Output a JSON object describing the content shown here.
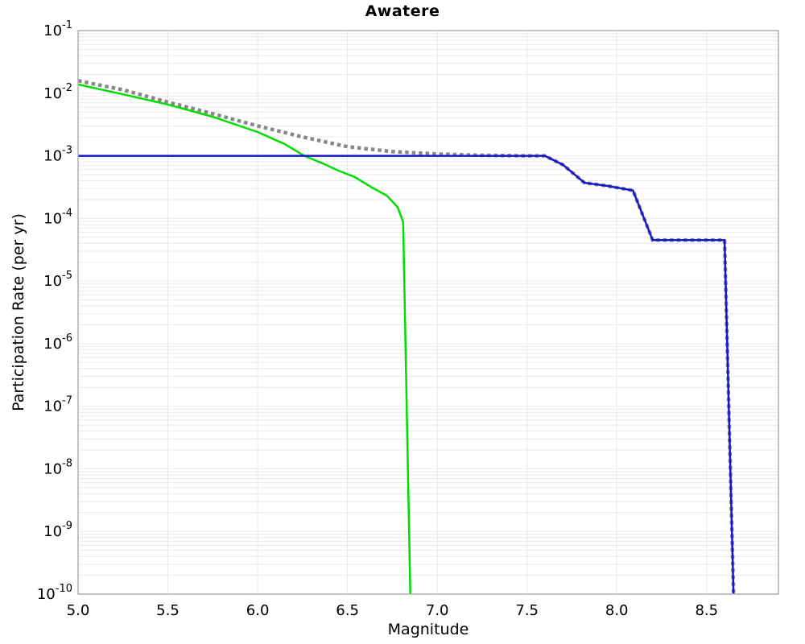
{
  "chart_data": {
    "type": "line",
    "title": "Awatere",
    "xlabel": "Magnitude",
    "ylabel": "Participation Rate (per yr)",
    "x_range": [
      5.0,
      8.9
    ],
    "y_exp_top": -1,
    "y_exp_bottom": -10,
    "x_ticks": [
      {
        "value": 5.0,
        "label": "5.0"
      },
      {
        "value": 5.5,
        "label": "5.5"
      },
      {
        "value": 6.0,
        "label": "6.0"
      },
      {
        "value": 6.5,
        "label": "6.5"
      },
      {
        "value": 7.0,
        "label": "7.0"
      },
      {
        "value": 7.5,
        "label": "7.5"
      },
      {
        "value": 8.0,
        "label": "8.0"
      },
      {
        "value": 8.5,
        "label": "8.5"
      }
    ],
    "y_tick_exponents": [
      -1,
      -2,
      -3,
      -4,
      -5,
      -6,
      -7,
      -8,
      -9,
      -10
    ],
    "grid": "on",
    "legend": "none",
    "grid_color": "#e9e9e9",
    "border_color": "#adadad",
    "series": [
      {
        "id": "dotted-gray",
        "style": "dotted",
        "color": "#878787",
        "width": 4.5,
        "points": [
          [
            5.0,
            0.0158
          ],
          [
            5.25,
            0.0113
          ],
          [
            5.5,
            0.0072
          ],
          [
            5.75,
            0.0047
          ],
          [
            6.0,
            0.003
          ],
          [
            6.25,
            0.002
          ],
          [
            6.5,
            0.0014
          ],
          [
            6.75,
            0.00117
          ],
          [
            7.0,
            0.00107
          ],
          [
            7.25,
            0.00102
          ],
          [
            7.5,
            0.001
          ],
          [
            7.6,
            0.001
          ],
          [
            7.7,
            0.00072
          ],
          [
            7.77,
            0.00049
          ],
          [
            7.82,
            0.00037
          ],
          [
            7.95,
            0.00033
          ],
          [
            8.09,
            0.00028
          ],
          [
            8.2,
            4.5e-05
          ],
          [
            8.6,
            4.5e-05
          ],
          [
            8.65,
            1e-10
          ]
        ]
      },
      {
        "id": "solid-green",
        "style": "solid",
        "color": "#00dd00",
        "width": 2.5,
        "points": [
          [
            5.0,
            0.0138
          ],
          [
            5.25,
            0.0096
          ],
          [
            5.5,
            0.0066
          ],
          [
            5.75,
            0.0042
          ],
          [
            6.0,
            0.0024
          ],
          [
            6.15,
            0.00155
          ],
          [
            6.26,
            0.001
          ],
          [
            6.36,
            0.00076
          ],
          [
            6.45,
            0.00058
          ],
          [
            6.54,
            0.00046
          ],
          [
            6.63,
            0.00032
          ],
          [
            6.72,
            0.00023
          ],
          [
            6.78,
            0.00015
          ],
          [
            6.81,
            8.7e-05
          ],
          [
            6.85,
            1e-10
          ]
        ]
      },
      {
        "id": "solid-blue",
        "style": "solid",
        "color": "#1515cd",
        "width": 2.5,
        "points": [
          [
            5.0,
            0.001
          ],
          [
            7.6,
            0.001
          ],
          [
            7.7,
            0.00072
          ],
          [
            7.77,
            0.00049
          ],
          [
            7.82,
            0.00037
          ],
          [
            7.95,
            0.00033
          ],
          [
            8.09,
            0.00028
          ],
          [
            8.2,
            4.5e-05
          ],
          [
            8.6,
            4.5e-05
          ],
          [
            8.65,
            1e-10
          ]
        ]
      }
    ]
  }
}
